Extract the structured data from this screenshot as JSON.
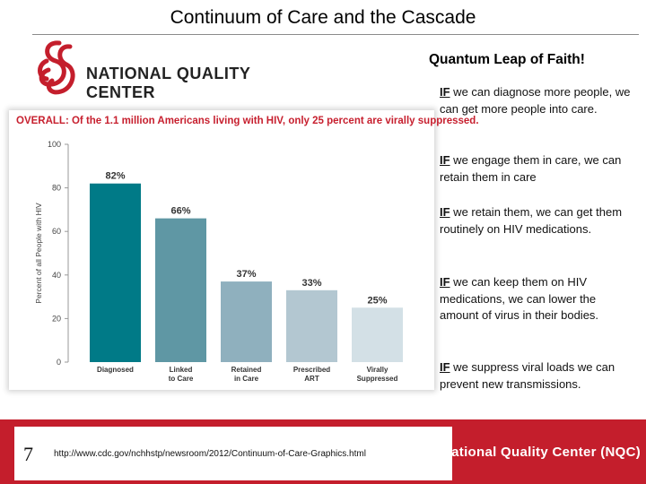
{
  "slide": {
    "title": "Continuum of Care and the Cascade",
    "subtitle": "Quantum Leap of Faith!",
    "logo_text": "NATIONAL QUALITY CENTER",
    "bullets": [
      {
        "keyword": "IF",
        "text": " we can diagnose more people, we can get more people into care."
      },
      {
        "keyword": "IF",
        "text": " we engage them in care, we can retain them in care"
      },
      {
        "keyword": "IF",
        "text": " we retain them, we can get them routinely on HIV medications."
      },
      {
        "keyword": "IF",
        "text": " we can keep them on HIV medications, we can lower the amount of virus in their bodies."
      },
      {
        "keyword": "IF",
        "text": " we suppress viral loads we can prevent new transmissions."
      }
    ],
    "page_number": "7",
    "footer_url": "http://www.cdc.gov/nchhstp/newsroom/2012/Continuum-of-Care-Graphics.html",
    "footer_org": "National Quality Center (NQC)"
  },
  "colors": {
    "accent_red": "#c41e2c",
    "title_red": "#c7202f"
  },
  "chart_data": {
    "type": "bar",
    "title": "OVERALL: Of the 1.1 million Americans living with HIV, only 25 percent are virally suppressed.",
    "ylabel": "Percent of all People with HIV",
    "xlabel": "",
    "ylim": [
      0,
      100
    ],
    "yticks": [
      0,
      20,
      40,
      60,
      80,
      100
    ],
    "grid": false,
    "categories": [
      "Diagnosed",
      "Linked to Care",
      "Retained in Care",
      "Prescribed ART",
      "Virally Suppressed"
    ],
    "category_lines": [
      [
        "Diagnosed"
      ],
      [
        "Linked",
        "to Care"
      ],
      [
        "Retained",
        "in Care"
      ],
      [
        "Prescribed",
        "ART"
      ],
      [
        "Virally",
        "Suppressed"
      ]
    ],
    "values": [
      82,
      66,
      37,
      33,
      25
    ],
    "value_labels": [
      "82%",
      "66%",
      "37%",
      "33%",
      "25%"
    ],
    "bar_colors": [
      "#007a87",
      "#5f97a4",
      "#8fb0be",
      "#b3c7d1",
      "#d3e0e6"
    ]
  }
}
